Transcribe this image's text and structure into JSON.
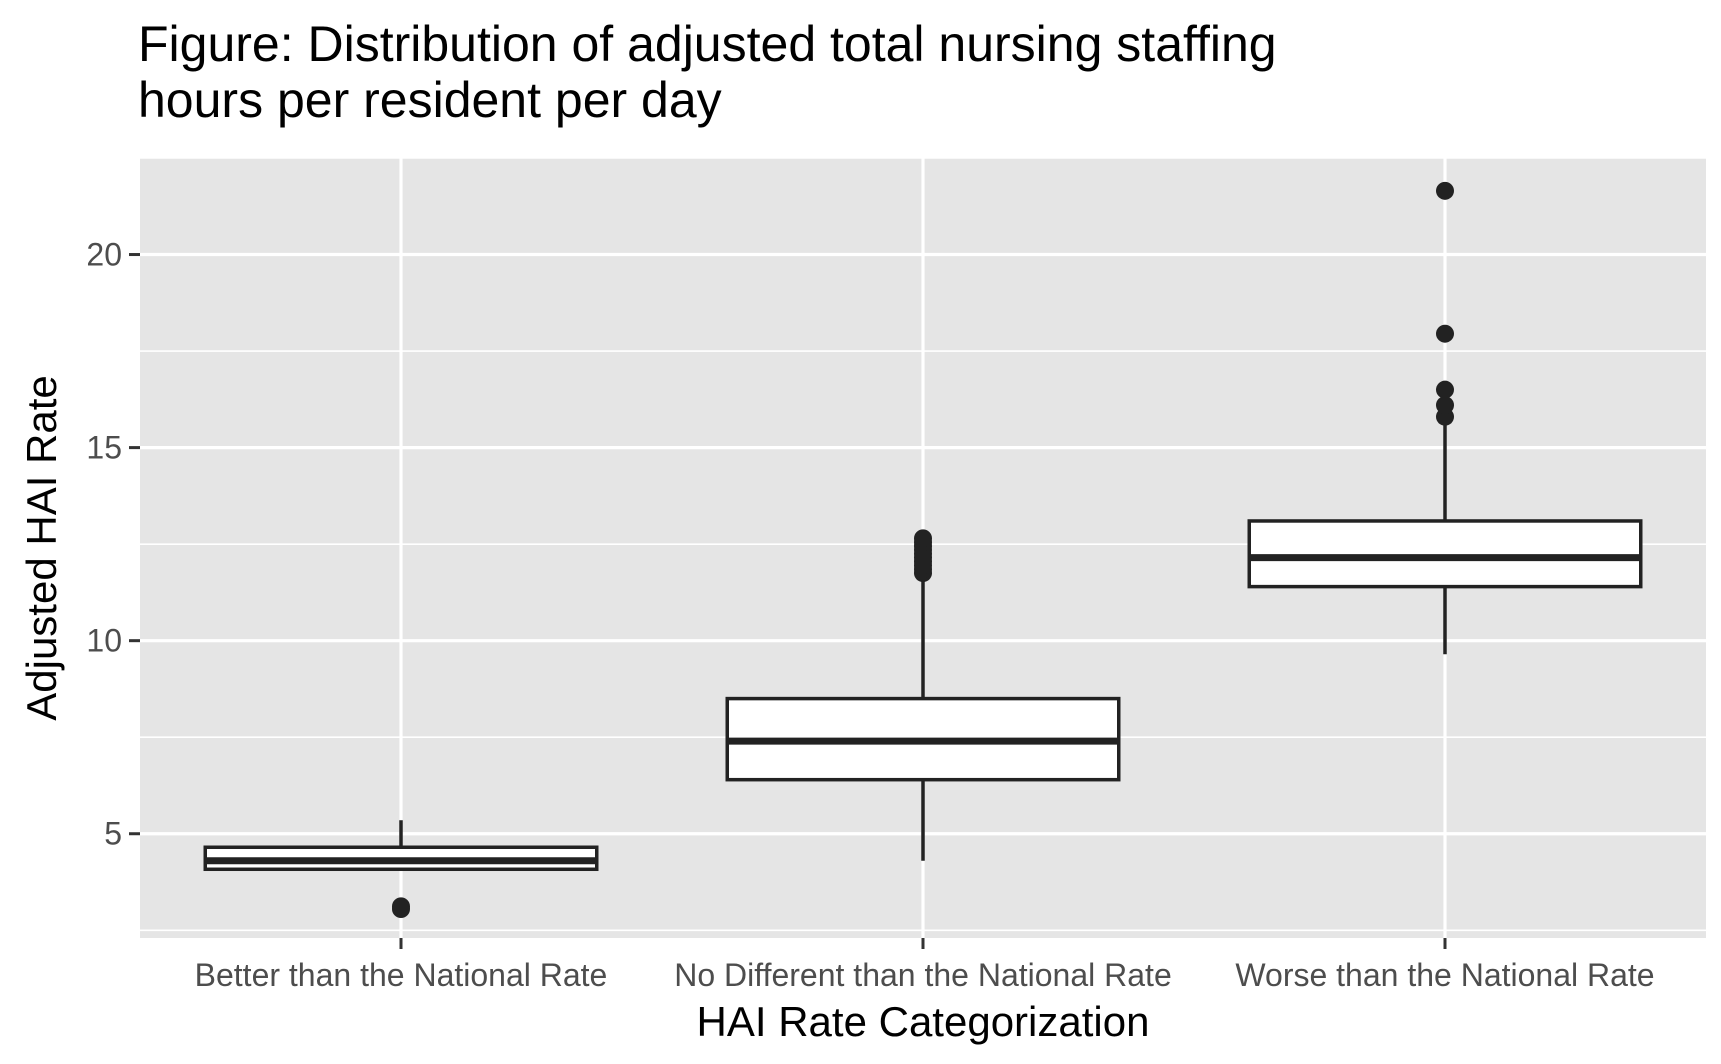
{
  "chart_data": {
    "type": "boxplot",
    "title_lines": [
      "Figure: Distribution of adjusted total nursing staffing",
      "hours per resident per day"
    ],
    "xlabel": "HAI Rate Categorization",
    "ylabel": "Adjusted HAI Rate",
    "categories": [
      "Better than the National Rate",
      "No Different than the National Rate",
      "Worse than the National Rate"
    ],
    "ylim": [
      2.3,
      22.5
    ],
    "yticks": [
      5,
      10,
      15,
      20
    ],
    "grid": true,
    "legend": "none",
    "colors": {
      "panel": "#e5e5e5",
      "grid": "#ffffff",
      "box_fill": "#ffffff",
      "box_line": "#222222",
      "tick_text": "#4d4d4d"
    },
    "boxes": [
      {
        "category": "Better than the National Rate",
        "whisker_low": 4.08,
        "q1": 4.08,
        "median": 4.3,
        "q3": 4.65,
        "whisker_high": 5.35,
        "outliers": [
          3.05,
          3.12
        ]
      },
      {
        "category": "No Different than the National Rate",
        "whisker_low": 4.3,
        "q1": 6.4,
        "median": 7.4,
        "q3": 8.5,
        "whisker_high": 11.7,
        "outliers": [
          11.75,
          11.85,
          11.95,
          12.05,
          12.15,
          12.25,
          12.35,
          12.45,
          12.55,
          12.65
        ]
      },
      {
        "category": "Worse than the National Rate",
        "whisker_low": 9.65,
        "q1": 11.4,
        "median": 12.15,
        "q3": 13.1,
        "whisker_high": 15.7,
        "outliers": [
          15.8,
          16.1,
          16.5,
          17.95,
          21.65
        ]
      }
    ]
  }
}
